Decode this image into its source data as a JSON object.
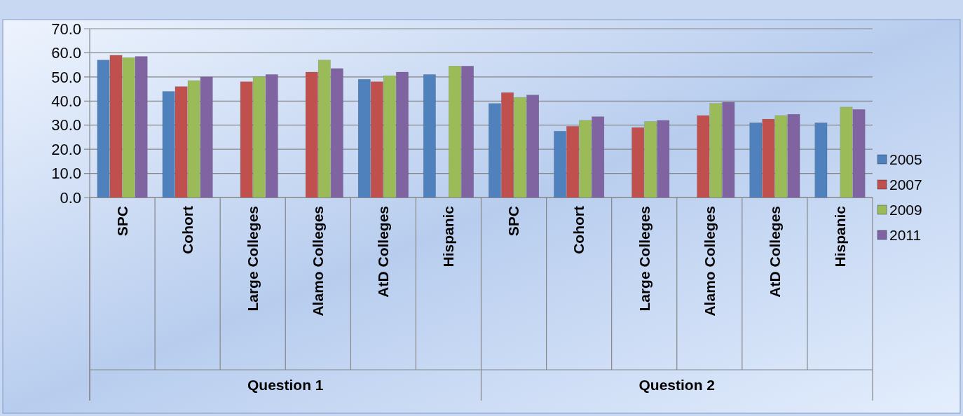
{
  "chart_data": {
    "type": "bar",
    "categories": [
      "SPC",
      "Cohort",
      "Large Colleges",
      "Alamo Colleges",
      "AtD Colleges",
      "Hispanic",
      "SPC",
      "Cohort",
      "Large Colleges",
      "Alamo Colleges",
      "AtD Colleges",
      "Hispanic"
    ],
    "series": [
      {
        "name": "2005",
        "color": "#4f81bd",
        "values": [
          57,
          44,
          null,
          null,
          49,
          51,
          39,
          27.5,
          null,
          null,
          31,
          31
        ]
      },
      {
        "name": "2007",
        "color": "#c0504d",
        "values": [
          59,
          46,
          48,
          52,
          48,
          null,
          43.5,
          29.5,
          29,
          34,
          32.5,
          null
        ]
      },
      {
        "name": "2009",
        "color": "#9bbb59",
        "values": [
          58,
          48.5,
          50,
          57,
          50.5,
          54.5,
          41.5,
          32,
          31.5,
          39,
          34,
          37.5
        ]
      },
      {
        "name": "2011",
        "color": "#8064a2",
        "values": [
          58.5,
          50,
          51,
          53.5,
          52,
          54.5,
          42.5,
          33.5,
          32,
          39.5,
          34.5,
          36.5
        ]
      }
    ],
    "annotations": [
      "Question 1",
      "Question 2"
    ],
    "ylim": [
      0,
      70
    ],
    "yticks": [
      {
        "value": 0,
        "label": "0.0"
      },
      {
        "value": 10,
        "label": "10.0"
      },
      {
        "value": 20,
        "label": "20.0"
      },
      {
        "value": 30,
        "label": "30.0"
      },
      {
        "value": 40,
        "label": "40.0"
      },
      {
        "value": 50,
        "label": "50.0"
      },
      {
        "value": 60,
        "label": "60.0"
      },
      {
        "value": 70,
        "label": "70.0"
      }
    ],
    "grid": "y",
    "legend": "right"
  }
}
